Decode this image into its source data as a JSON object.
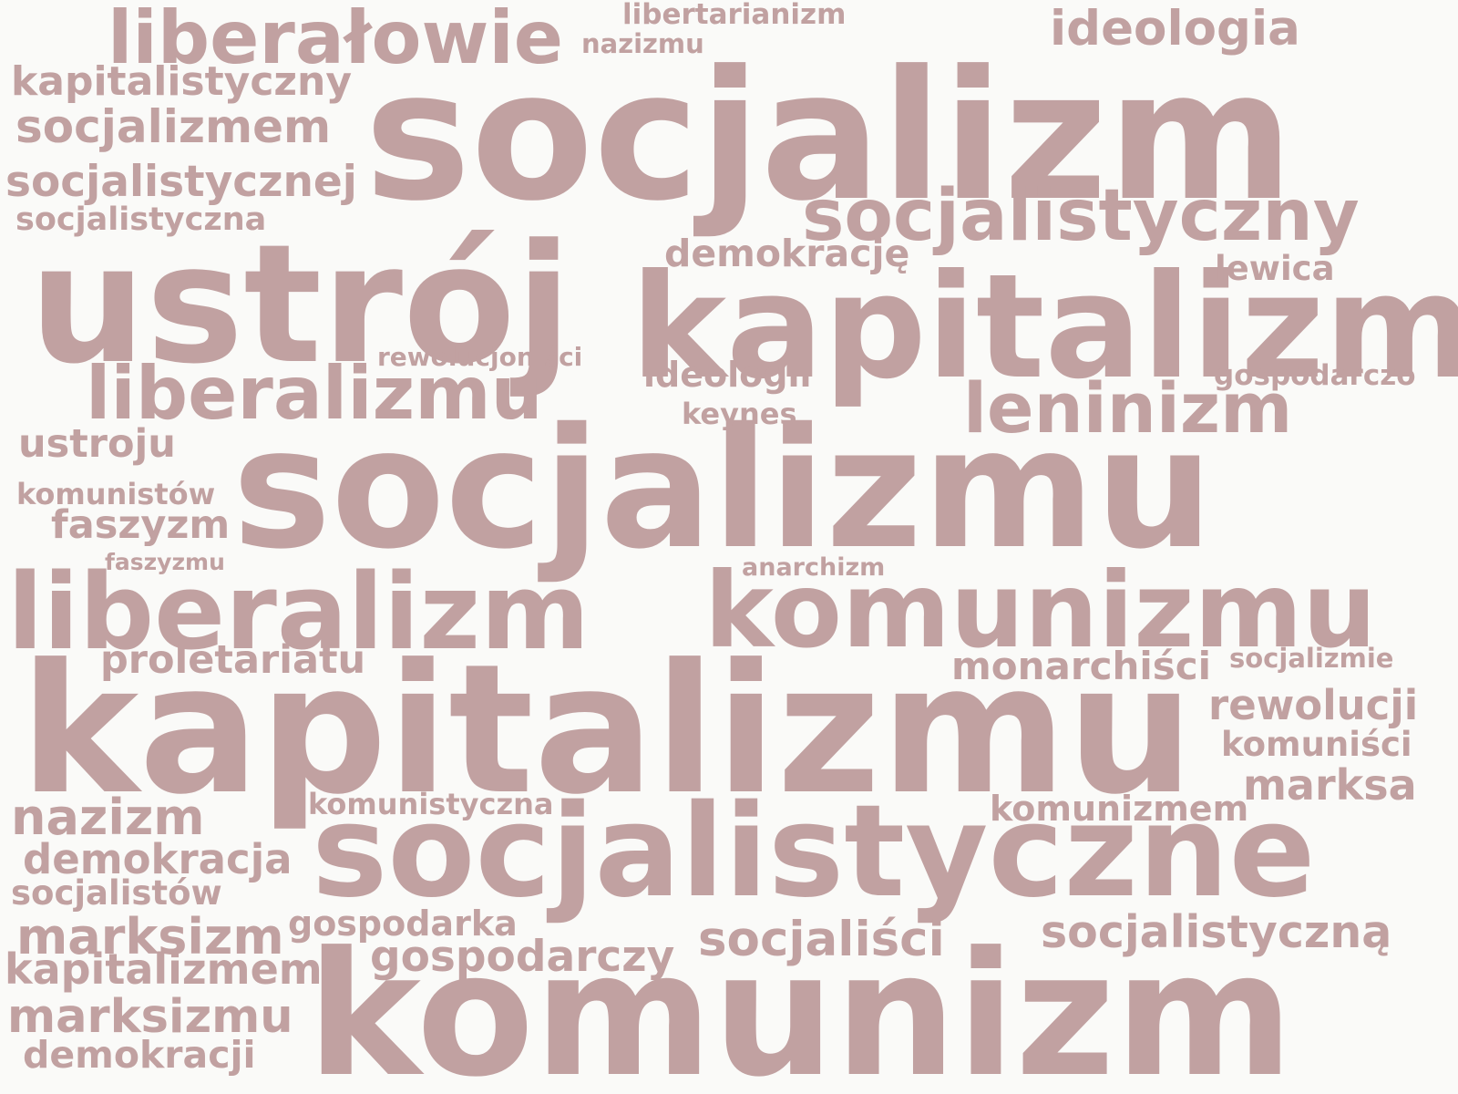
{
  "colors": {
    "background": "#fafaf8",
    "word": "#c1a1a1"
  },
  "words": [
    {
      "text": "socjalizm"
    },
    {
      "text": "ustrój"
    },
    {
      "text": "kapitalizm"
    },
    {
      "text": "socjalizmu"
    },
    {
      "text": "kapitalizmu"
    },
    {
      "text": "komunizm"
    },
    {
      "text": "socjalistyczne"
    },
    {
      "text": "komunizmu"
    },
    {
      "text": "liberalizm"
    },
    {
      "text": "liberałowie"
    },
    {
      "text": "socjalistyczny"
    },
    {
      "text": "liberalizmu"
    },
    {
      "text": "leninizm"
    },
    {
      "text": "ideologia"
    },
    {
      "text": "socjalizmem"
    },
    {
      "text": "socjalistycznej"
    },
    {
      "text": "kapitalistyczny"
    },
    {
      "text": "socjalistyczna"
    },
    {
      "text": "demokrację"
    },
    {
      "text": "lewica"
    },
    {
      "text": "rewolucjoniści"
    },
    {
      "text": "ideologii"
    },
    {
      "text": "gospodarczo"
    },
    {
      "text": "keynes"
    },
    {
      "text": "ustroju"
    },
    {
      "text": "komunistów"
    },
    {
      "text": "faszyzm"
    },
    {
      "text": "faszyzmu"
    },
    {
      "text": "anarchizm"
    },
    {
      "text": "proletariatu"
    },
    {
      "text": "monarchiści"
    },
    {
      "text": "socjalizmie"
    },
    {
      "text": "rewolucji"
    },
    {
      "text": "komuniści"
    },
    {
      "text": "marksa"
    },
    {
      "text": "nazizm"
    },
    {
      "text": "komunistyczna"
    },
    {
      "text": "komunizmem"
    },
    {
      "text": "demokracja"
    },
    {
      "text": "socjalistów"
    },
    {
      "text": "marksizm"
    },
    {
      "text": "gospodarka"
    },
    {
      "text": "socjaliści"
    },
    {
      "text": "socjalistyczną"
    },
    {
      "text": "kapitalizmem"
    },
    {
      "text": "gospodarczy"
    },
    {
      "text": "marksizmu"
    },
    {
      "text": "demokracji"
    },
    {
      "text": "libertarianizm"
    },
    {
      "text": "nazizmu"
    }
  ]
}
